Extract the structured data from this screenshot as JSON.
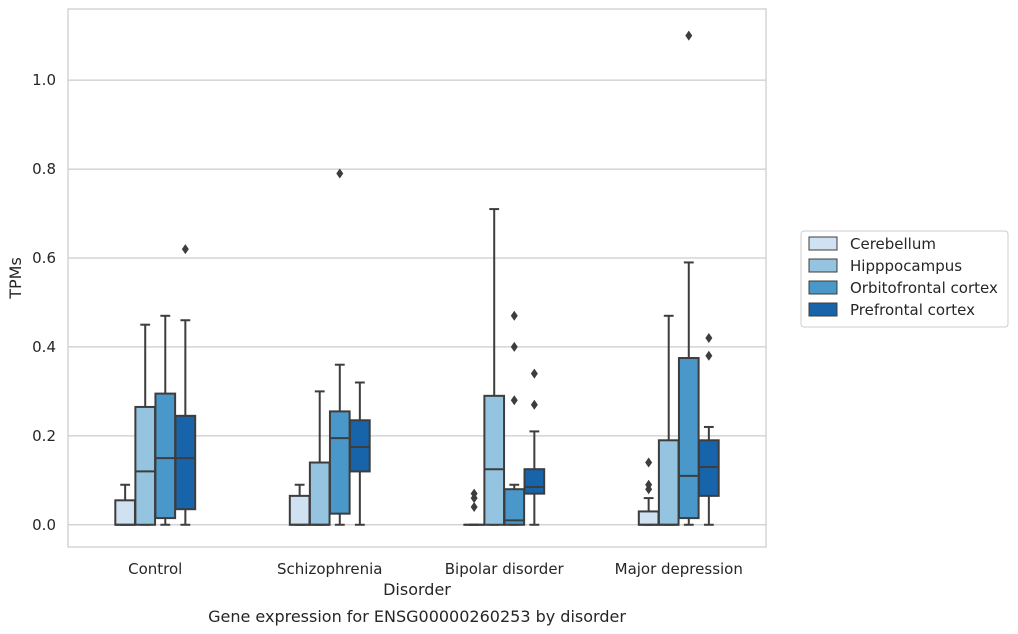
{
  "caption": "Gene expression for ENSG00000260253 by disorder",
  "chart_data": {
    "type": "box",
    "xlabel": "Disorder",
    "ylabel": "TPMs",
    "ylim": [
      -0.05,
      1.16
    ],
    "yticks": [
      "0.0",
      "0.2",
      "0.4",
      "0.6",
      "0.8",
      "1.0"
    ],
    "categories": [
      "Control",
      "Schizophrenia",
      "Bipolar disorder",
      "Major depression"
    ],
    "grid": "horizontal",
    "legend_position": "right",
    "series": [
      {
        "name": "Cerebellum",
        "color": "#d0e1f2",
        "boxes": [
          {
            "whislo": 0.0,
            "q1": 0.0,
            "med": 0.0,
            "q3": 0.055,
            "whishi": 0.09,
            "fliers": []
          },
          {
            "whislo": 0.0,
            "q1": 0.0,
            "med": 0.0,
            "q3": 0.065,
            "whishi": 0.09,
            "fliers": []
          },
          {
            "whislo": 0.0,
            "q1": 0.0,
            "med": 0.0,
            "q3": 0.0,
            "whishi": 0.0,
            "fliers": [
              0.04,
              0.06,
              0.07
            ]
          },
          {
            "whislo": 0.0,
            "q1": 0.0,
            "med": 0.0,
            "q3": 0.03,
            "whishi": 0.06,
            "fliers": [
              0.08,
              0.09,
              0.14
            ]
          }
        ]
      },
      {
        "name": "Hipppocampus",
        "color": "#94c4df",
        "boxes": [
          {
            "whislo": 0.0,
            "q1": 0.0,
            "med": 0.12,
            "q3": 0.265,
            "whishi": 0.45,
            "fliers": []
          },
          {
            "whislo": 0.0,
            "q1": 0.0,
            "med": 0.0,
            "q3": 0.14,
            "whishi": 0.3,
            "fliers": []
          },
          {
            "whislo": 0.0,
            "q1": 0.0,
            "med": 0.125,
            "q3": 0.29,
            "whishi": 0.71,
            "fliers": []
          },
          {
            "whislo": 0.0,
            "q1": 0.0,
            "med": 0.0,
            "q3": 0.19,
            "whishi": 0.47,
            "fliers": []
          }
        ]
      },
      {
        "name": "Orbitofrontal cortex",
        "color": "#4a98c9",
        "boxes": [
          {
            "whislo": 0.0,
            "q1": 0.015,
            "med": 0.15,
            "q3": 0.295,
            "whishi": 0.47,
            "fliers": []
          },
          {
            "whislo": 0.0,
            "q1": 0.025,
            "med": 0.195,
            "q3": 0.255,
            "whishi": 0.36,
            "fliers": [
              0.79
            ]
          },
          {
            "whislo": 0.0,
            "q1": 0.0,
            "med": 0.01,
            "q3": 0.08,
            "whishi": 0.09,
            "fliers": [
              0.28,
              0.4,
              0.47
            ]
          },
          {
            "whislo": 0.0,
            "q1": 0.015,
            "med": 0.11,
            "q3": 0.375,
            "whishi": 0.59,
            "fliers": [
              1.1
            ]
          }
        ]
      },
      {
        "name": "Prefrontal cortex",
        "color": "#1764ab",
        "boxes": [
          {
            "whislo": 0.0,
            "q1": 0.035,
            "med": 0.15,
            "q3": 0.245,
            "whishi": 0.46,
            "fliers": [
              0.62
            ]
          },
          {
            "whislo": 0.0,
            "q1": 0.12,
            "med": 0.175,
            "q3": 0.235,
            "whishi": 0.32,
            "fliers": []
          },
          {
            "whislo": 0.0,
            "q1": 0.07,
            "med": 0.085,
            "q3": 0.125,
            "whishi": 0.21,
            "fliers": [
              0.27,
              0.34
            ]
          },
          {
            "whislo": 0.0,
            "q1": 0.065,
            "med": 0.13,
            "q3": 0.19,
            "whishi": 0.22,
            "fliers": [
              0.38,
              0.42
            ]
          }
        ]
      }
    ]
  }
}
